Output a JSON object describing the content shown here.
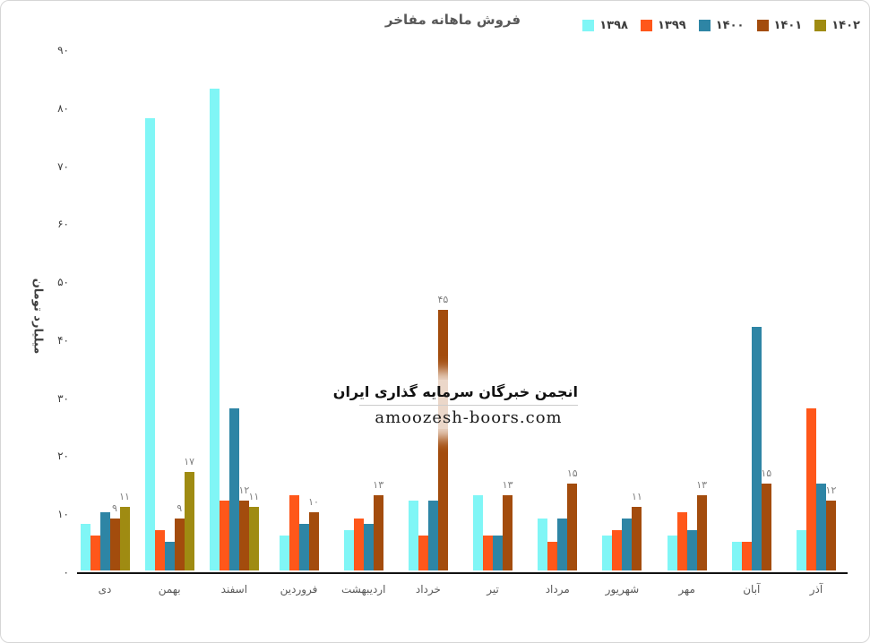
{
  "page": {
    "title": "فروش ماهانه مفاخر"
  },
  "watermark": {
    "line1": "انجمن خبرگان سرمایه گذاری ایران",
    "line2": "amoozesh-boors.com"
  },
  "colors": {
    "series_1398": "#80f6f6",
    "series_1399": "#ff571a",
    "series_1400": "#2e85a5",
    "series_1401": "#a34c0d",
    "series_1402": "#9f8b12",
    "title_text": "#595959",
    "axis_line": "#111111",
    "data_label": "#7f7f7f"
  },
  "chart_data": {
    "type": "bar",
    "title": "فروش ماهانه مفاخر",
    "xlabel": "",
    "ylabel": "میلیارد تومان",
    "ylim": [
      0,
      90
    ],
    "grid": false,
    "legend_position": "top-right",
    "y_ticks": [
      {
        "value": 90,
        "label": "۹۰"
      },
      {
        "value": 80,
        "label": "۸۰"
      },
      {
        "value": 70,
        "label": "۷۰"
      },
      {
        "value": 60,
        "label": "۶۰"
      },
      {
        "value": 50,
        "label": "۵۰"
      },
      {
        "value": 40,
        "label": "۴۰"
      },
      {
        "value": 30,
        "label": "۳۰"
      },
      {
        "value": 20,
        "label": "۲۰"
      },
      {
        "value": 10,
        "label": "۱۰"
      },
      {
        "value": 0,
        "label": "۰"
      }
    ],
    "categories": [
      "دی",
      "بهمن",
      "اسفند",
      "فروردین",
      "اردیبهشت",
      "خرداد",
      "تیر",
      "مرداد",
      "شهریور",
      "مهر",
      "آبان",
      "آذر"
    ],
    "series": [
      {
        "name": "۱۳۹۸",
        "color": "#80f6f6",
        "values": [
          8,
          78,
          83,
          6,
          7,
          12,
          13,
          9,
          6,
          6,
          5,
          7
        ],
        "labels": null
      },
      {
        "name": "۱۳۹۹",
        "color": "#ff571a",
        "values": [
          6,
          7,
          12,
          13,
          9,
          6,
          6,
          5,
          7,
          10,
          5,
          28
        ],
        "labels": null
      },
      {
        "name": "۱۴۰۰",
        "color": "#2e85a5",
        "values": [
          10,
          5,
          28,
          8,
          8,
          12,
          6,
          9,
          9,
          7,
          42,
          15
        ],
        "labels": null
      },
      {
        "name": "۱۴۰۱",
        "color": "#a34c0d",
        "values": [
          9,
          9,
          12,
          10,
          13,
          45,
          13,
          15,
          11,
          13,
          15,
          12
        ],
        "labels": [
          "۹",
          "۹",
          "۱۲",
          "۱۰",
          "۱۳",
          "۴۵",
          "۱۳",
          "۱۵",
          "۱۱",
          "۱۳",
          "۱۵",
          "۱۲"
        ]
      },
      {
        "name": "۱۴۰۲",
        "color": "#9f8b12",
        "values": [
          11,
          17,
          11,
          null,
          null,
          null,
          null,
          null,
          null,
          null,
          null,
          null
        ],
        "labels": [
          "۱۱",
          "۱۷",
          "۱۱",
          null,
          null,
          null,
          null,
          null,
          null,
          null,
          null,
          null
        ]
      }
    ]
  }
}
